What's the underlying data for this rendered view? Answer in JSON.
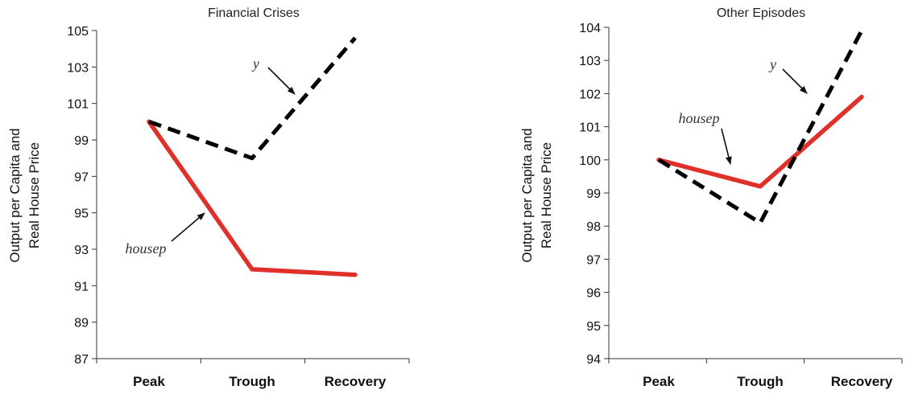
{
  "chart_data": [
    {
      "type": "line",
      "title": "Financial Crises",
      "xlabel": "",
      "ylabel_lines": [
        "Output per Capita and",
        "Real House Price"
      ],
      "categories": [
        "Peak",
        "Trough",
        "Recovery"
      ],
      "ylim": [
        87,
        105
      ],
      "yticks": [
        87,
        89,
        91,
        93,
        95,
        97,
        99,
        101,
        103,
        105
      ],
      "grid": false,
      "series": [
        {
          "name": "y",
          "values": [
            100.0,
            98.0,
            104.6
          ],
          "color": "#000000",
          "dashed": true
        },
        {
          "name": "housep",
          "values": [
            100.0,
            91.9,
            91.6
          ],
          "color": "#e0302a",
          "dashed": false
        }
      ],
      "annotations": [
        {
          "text": "y",
          "series": "y"
        },
        {
          "text": "housep",
          "series": "housep"
        }
      ]
    },
    {
      "type": "line",
      "title": "Other Episodes",
      "xlabel": "",
      "ylabel_lines": [
        "Output per Capita and",
        "Real House Price"
      ],
      "categories": [
        "Peak",
        "Trough",
        "Recovery"
      ],
      "ylim": [
        94,
        104
      ],
      "yticks": [
        94,
        95,
        96,
        97,
        98,
        99,
        100,
        101,
        102,
        103,
        104
      ],
      "grid": false,
      "series": [
        {
          "name": "y",
          "values": [
            100.0,
            98.1,
            103.9
          ],
          "color": "#000000",
          "dashed": true
        },
        {
          "name": "housep",
          "values": [
            100.0,
            99.2,
            101.9
          ],
          "color": "#e0302a",
          "dashed": false
        }
      ],
      "annotations": [
        {
          "text": "y",
          "series": "y"
        },
        {
          "text": "housep",
          "series": "housep"
        }
      ]
    }
  ]
}
